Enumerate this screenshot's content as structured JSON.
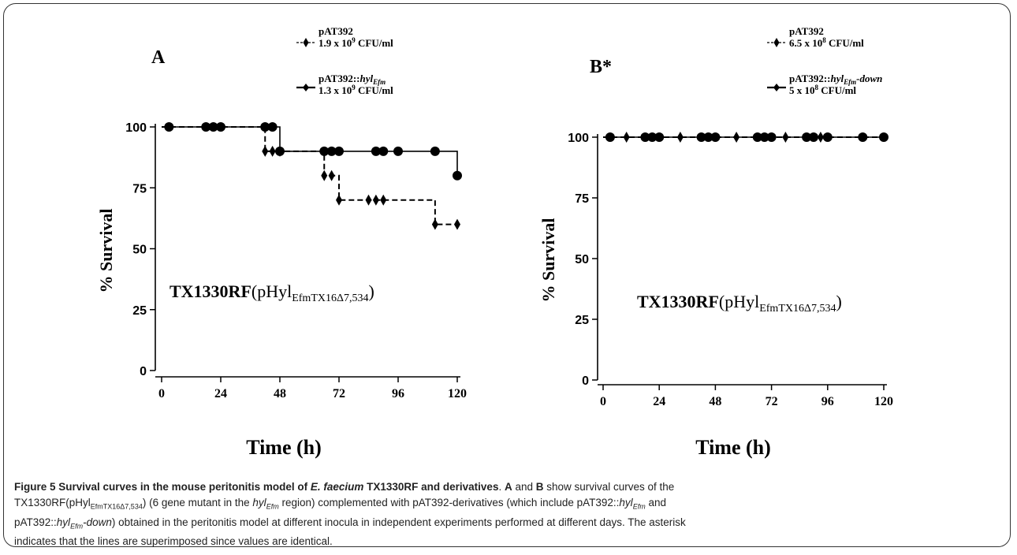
{
  "chart_data": [
    {
      "type": "line",
      "panel_label": "A",
      "strain_label": {
        "main": "TX1330RF",
        "paren_open": "(pHyl",
        "sub": "EfmTX16Δ7,534",
        "paren_close": ")"
      },
      "xlabel": "Time (h)",
      "ylabel": "% Survival",
      "xlim": [
        0,
        120
      ],
      "ylim": [
        0,
        100
      ],
      "xticks": [
        "0",
        "24",
        "48",
        "72",
        "96",
        "120"
      ],
      "yticks": [
        "0",
        "25",
        "50",
        "75",
        "100"
      ],
      "legend": [
        {
          "name_main": "pAT392",
          "name_italic": "",
          "inoculum": "1.9 x 10",
          "exp": "9",
          "unit": " CFU/ml",
          "style": "dashed",
          "marker": "diamond"
        },
        {
          "name_main": "pAT392::",
          "name_italic": "hyl",
          "name_sub": "Efm",
          "name_tail": "",
          "inoculum": "1.3 x 10",
          "exp": "9",
          "unit": " CFU/ml",
          "style": "solid",
          "marker": "circle"
        }
      ],
      "series": [
        {
          "name": "pAT392",
          "style": "dashed",
          "marker": "diamond",
          "steps": [
            [
              0,
              100
            ],
            [
              42,
              90
            ],
            [
              66,
              80
            ],
            [
              72,
              70
            ],
            [
              111,
              60
            ],
            [
              120,
              60
            ]
          ],
          "markers": [
            [
              42,
              90
            ],
            [
              45,
              90
            ],
            [
              48,
              90
            ],
            [
              66,
              80
            ],
            [
              69,
              80
            ],
            [
              72,
              70
            ],
            [
              84,
              70
            ],
            [
              87,
              70
            ],
            [
              90,
              70
            ],
            [
              111,
              60
            ],
            [
              120,
              60
            ]
          ]
        },
        {
          "name": "pAT392::hylEfm",
          "style": "solid",
          "marker": "circle",
          "steps": [
            [
              0,
              100
            ],
            [
              48,
              90
            ],
            [
              120,
              80
            ]
          ],
          "markers": [
            [
              3,
              100
            ],
            [
              18,
              100
            ],
            [
              21,
              100
            ],
            [
              24,
              100
            ],
            [
              42,
              100
            ],
            [
              45,
              100
            ],
            [
              48,
              90
            ],
            [
              66,
              90
            ],
            [
              69,
              90
            ],
            [
              72,
              90
            ],
            [
              87,
              90
            ],
            [
              90,
              90
            ],
            [
              96,
              90
            ],
            [
              111,
              90
            ],
            [
              120,
              80
            ]
          ]
        }
      ]
    },
    {
      "type": "line",
      "panel_label": "B*",
      "strain_label": {
        "main": "TX1330RF",
        "paren_open": "(pHyl",
        "sub": "EfmTX16Δ7,534",
        "paren_close": ")"
      },
      "xlabel": "Time (h)",
      "ylabel": "% Survival",
      "xlim": [
        0,
        120
      ],
      "ylim": [
        0,
        100
      ],
      "xticks": [
        "0",
        "24",
        "48",
        "72",
        "96",
        "120"
      ],
      "yticks": [
        "0",
        "25",
        "50",
        "75",
        "100"
      ],
      "legend": [
        {
          "name_main": "pAT392",
          "name_italic": "",
          "inoculum": "6.5 x 10",
          "exp": "8",
          "unit": " CFU/ml",
          "style": "dashed",
          "marker": "diamond"
        },
        {
          "name_main": "pAT392::",
          "name_italic": "hyl",
          "name_sub": "Efm",
          "name_tail": "-down",
          "inoculum": "5 x 10",
          "exp": "8",
          "unit": " CFU/ml",
          "style": "solid",
          "marker": "circle"
        }
      ],
      "series": [
        {
          "name": "pAT392",
          "style": "dashed",
          "marker": "diamond",
          "steps": [
            [
              0,
              100
            ],
            [
              120,
              100
            ]
          ],
          "markers": [
            [
              10,
              100
            ],
            [
              33,
              100
            ],
            [
              57,
              100
            ],
            [
              78,
              100
            ],
            [
              93,
              100
            ]
          ]
        },
        {
          "name": "pAT392::hylEfm-down",
          "style": "solid",
          "marker": "circle",
          "steps": [
            [
              0,
              100
            ],
            [
              120,
              100
            ]
          ],
          "markers": [
            [
              3,
              100
            ],
            [
              18,
              100
            ],
            [
              21,
              100
            ],
            [
              24,
              100
            ],
            [
              42,
              100
            ],
            [
              45,
              100
            ],
            [
              48,
              100
            ],
            [
              66,
              100
            ],
            [
              69,
              100
            ],
            [
              72,
              100
            ],
            [
              87,
              100
            ],
            [
              90,
              100
            ],
            [
              96,
              100
            ],
            [
              111,
              100
            ],
            [
              120,
              100
            ]
          ]
        }
      ]
    }
  ],
  "caption": {
    "fig_label": "Figure 5 Survival curves in the mouse peritonitis model of ",
    "fig_species": "E. faecium",
    "fig_tail": " TX1330RF and derivatives",
    "p1_a": ". ",
    "p1_A": "A",
    "p1_and": " and ",
    "p1_B": "B",
    "p1_rest": " show survival curves of the",
    "p2_a": "TX1330RF(pHyl",
    "p2_sub": "EfmTX16Δ7,534",
    "p2_b": ") (6 gene mutant in the ",
    "p2_hyl": "hyl",
    "p2_hylsub": "Efm",
    "p2_c": " region) complemented with pAT392-derivatives (which include pAT392::",
    "p2_hyl2": "hyl",
    "p2_hylsub2": "Efm",
    "p2_d": " and",
    "p3_a": "pAT392::",
    "p3_hyl": "hyl",
    "p3_hylsub": "Efm",
    "p3_b": "-down",
    "p3_c": ") obtained in the peritonitis model at different inocula in independent experiments performed at different days. The asterisk",
    "p4": "indicates that the lines are superimposed since values are identical."
  }
}
